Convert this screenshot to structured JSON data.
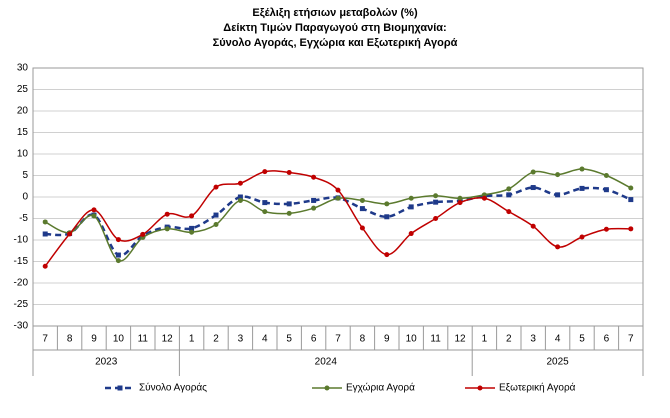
{
  "chart_data": {
    "type": "line",
    "title_lines": [
      "Εξέλιξη ετήσιων μεταβολών (%)",
      "Δείκτη Τιμών Παραγωγού στη Βιομηχανία:",
      "Σύνολο Αγοράς, Εγχώρια και Εξωτερική Αγορά"
    ],
    "groups": [
      {
        "year": "2023",
        "months": [
          "7",
          "8",
          "9",
          "10",
          "11",
          "12"
        ]
      },
      {
        "year": "2024",
        "months": [
          "1",
          "2",
          "3",
          "4",
          "5",
          "6",
          "7",
          "8",
          "9",
          "10",
          "11",
          "12"
        ]
      },
      {
        "year": "2025",
        "months": [
          "1",
          "2",
          "3",
          "4",
          "5",
          "6",
          "7"
        ]
      }
    ],
    "ylim": [
      -30,
      30
    ],
    "yticks": [
      -30,
      -25,
      -20,
      -15,
      -10,
      -5,
      0,
      5,
      10,
      15,
      20,
      25,
      30
    ],
    "grid": true,
    "series": [
      {
        "name": "Σύνολο Αγοράς",
        "color": "#1f3a8a",
        "dashed": true,
        "marker": "square",
        "values": [
          -8.6,
          -8.5,
          -4.2,
          -13.5,
          -9.0,
          -7.0,
          -7.3,
          -4.2,
          0,
          -1.3,
          -1.6,
          -0.8,
          -0.2,
          -2.7,
          -4.6,
          -2.3,
          -1.2,
          -0.9,
          0.2,
          0.5,
          2.2,
          0.5,
          2.0,
          1.7,
          -0.6
        ]
      },
      {
        "name": "Εγχώρια Αγορά",
        "color": "#5b7a2e",
        "dashed": false,
        "marker": "circle",
        "values": [
          -5.8,
          -8.3,
          -4.4,
          -14.8,
          -9.4,
          -7.4,
          -8.2,
          -6.4,
          -0.8,
          -3.4,
          -3.8,
          -2.6,
          -0.3,
          -0.8,
          -1.6,
          -0.3,
          0.3,
          -0.3,
          0.5,
          1.9,
          5.8,
          5.2,
          6.5,
          5.0,
          2.1
        ]
      },
      {
        "name": "Εξωτερική Αγορά",
        "color": "#c00000",
        "dashed": false,
        "marker": "circle",
        "values": [
          -16.1,
          -8.6,
          -3.0,
          -9.9,
          -8.7,
          -4.0,
          -4.4,
          2.3,
          3.2,
          5.9,
          5.7,
          4.6,
          1.6,
          -7.2,
          -13.4,
          -8.5,
          -5.0,
          -1.3,
          -0.3,
          -3.4,
          -6.8,
          -11.6,
          -9.3,
          -7.5,
          -7.4
        ]
      }
    ]
  }
}
